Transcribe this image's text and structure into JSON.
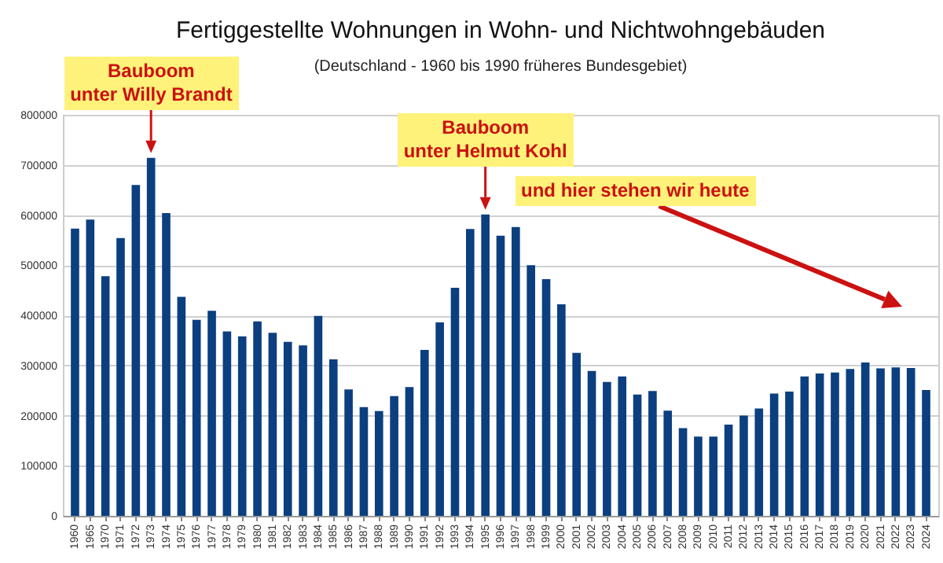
{
  "chart_data": {
    "type": "bar",
    "title": "Fertiggestellte Wohnungen in Wohn- und Nichtwohngebäuden",
    "subtitle": "(Deutschland - 1960 bis 1990 früheres Bundesgebiet)",
    "categories": [
      "1960",
      "1965",
      "1970",
      "1971",
      "1972",
      "1973",
      "1974",
      "1975",
      "1976",
      "1977",
      "1978",
      "1979",
      "1980",
      "1981",
      "1982",
      "1983",
      "1984",
      "1985",
      "1986",
      "1987",
      "1988",
      "1989",
      "1990",
      "1991",
      "1992",
      "1993",
      "1994",
      "1995",
      "1996",
      "1997",
      "1998",
      "1999",
      "2000",
      "2001",
      "2002",
      "2003",
      "2004",
      "2005",
      "2006",
      "2007",
      "2008",
      "2009",
      "2010",
      "2011",
      "2012",
      "2013",
      "2014",
      "2015",
      "2016",
      "2017",
      "2018",
      "2019",
      "2020",
      "2021",
      "2022",
      "2023",
      "2024"
    ],
    "values": [
      573000,
      591000,
      478000,
      554000,
      660000,
      714000,
      604000,
      437000,
      391000,
      409000,
      368000,
      358000,
      388000,
      365000,
      347000,
      340000,
      399000,
      312000,
      252000,
      217000,
      209000,
      239000,
      257000,
      331000,
      386000,
      455000,
      572000,
      601000,
      559000,
      576000,
      500000,
      472000,
      422000,
      325000,
      289000,
      267000,
      278000,
      242000,
      249000,
      210000,
      175000,
      158000,
      158000,
      182000,
      200000,
      214000,
      244000,
      248000,
      278000,
      284000,
      286000,
      293000,
      306000,
      294000,
      296000,
      295000,
      251000
    ],
    "color": "#0b3f7f",
    "ylim": [
      0,
      800000
    ],
    "yticks": [
      0,
      100000,
      200000,
      300000,
      400000,
      500000,
      600000,
      700000,
      800000
    ],
    "grid": "y",
    "annotations": [
      {
        "text": "Bauboom\nunter Willy Brandt",
        "x": "1973",
        "y": 714000
      },
      {
        "text": "Bauboom\nunter Helmut Kohl",
        "x": "1995",
        "y": 601000
      },
      "und hier stehen wir heute"
    ]
  }
}
